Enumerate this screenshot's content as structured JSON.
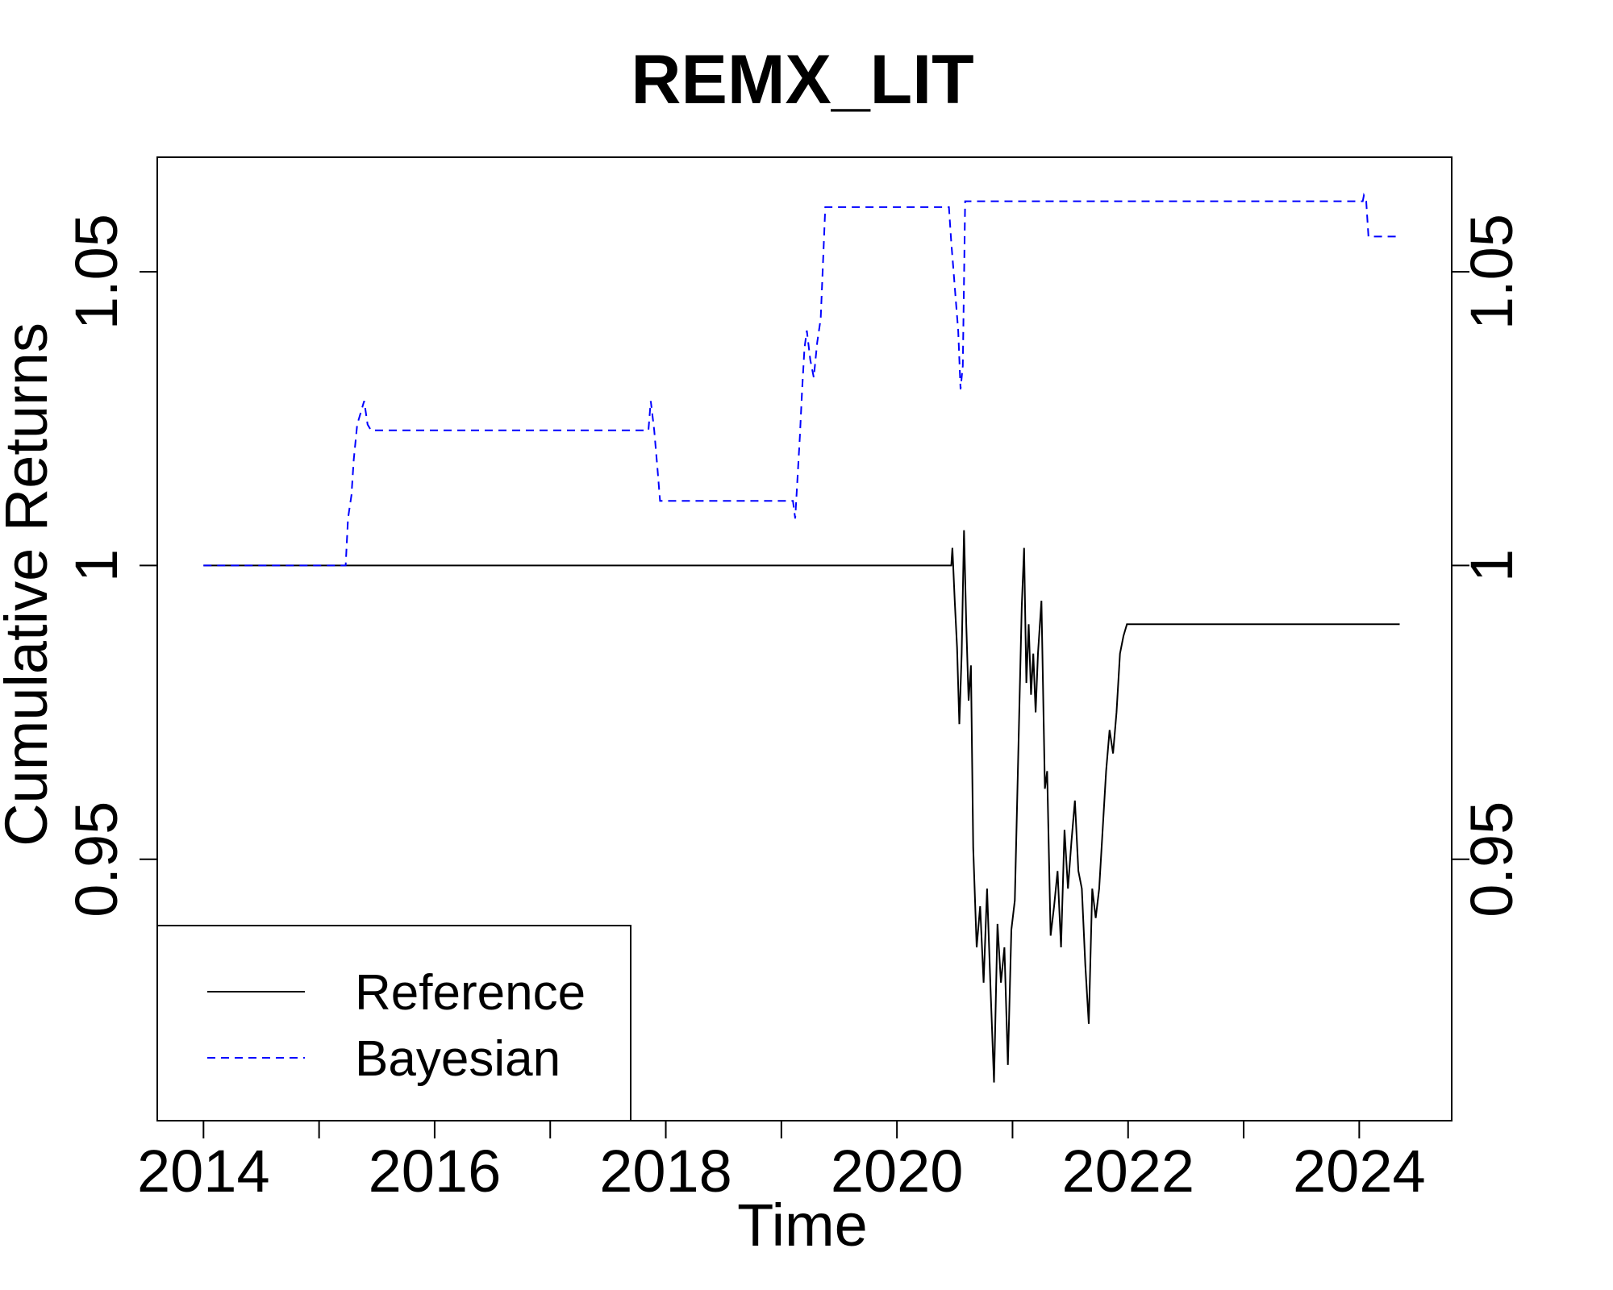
{
  "chart_data": {
    "type": "line",
    "title": "REMX_LIT",
    "xlabel": "Time",
    "ylabel": "Cumulative Returns",
    "xlim": [
      2013.6,
      2024.8
    ],
    "ylim": [
      0.9055,
      1.0695
    ],
    "x_ticks": [
      2014,
      2016,
      2018,
      2020,
      2022,
      2024
    ],
    "x_tick_labels": [
      "2014",
      "2016",
      "2018",
      "2020",
      "2022",
      "2024"
    ],
    "x_minor_ticks": [
      2015,
      2017,
      2019,
      2021,
      2023
    ],
    "y_ticks": [
      0.95,
      1.0,
      1.05
    ],
    "y_tick_labels": [
      "0.95",
      "1",
      "1.05"
    ],
    "grid": false,
    "legend_position": "bottom-left",
    "series": [
      {
        "name": "Reference",
        "color": "#000000",
        "line_style": "solid",
        "x": [
          2014.0,
          2020.47,
          2020.48,
          2020.5,
          2020.52,
          2020.54,
          2020.56,
          2020.58,
          2020.6,
          2020.62,
          2020.64,
          2020.66,
          2020.69,
          2020.72,
          2020.75,
          2020.78,
          2020.81,
          2020.84,
          2020.87,
          2020.9,
          2020.93,
          2020.96,
          2020.99,
          2021.02,
          2021.05,
          2021.08,
          2021.1,
          2021.12,
          2021.14,
          2021.16,
          2021.18,
          2021.2,
          2021.22,
          2021.25,
          2021.28,
          2021.3,
          2021.33,
          2021.36,
          2021.39,
          2021.42,
          2021.45,
          2021.48,
          2021.51,
          2021.54,
          2021.57,
          2021.6,
          2021.63,
          2021.66,
          2021.69,
          2021.72,
          2021.75,
          2021.78,
          2021.81,
          2021.84,
          2021.87,
          2021.9,
          2021.93,
          2021.96,
          2021.99,
          2022.02,
          2022.05,
          2022.08,
          2022.11,
          2022.14,
          2022.17,
          2024.35
        ],
        "y": [
          1.0,
          1.0,
          1.003,
          0.994,
          0.986,
          0.973,
          0.985,
          1.006,
          0.99,
          0.977,
          0.983,
          0.952,
          0.935,
          0.942,
          0.929,
          0.945,
          0.928,
          0.912,
          0.939,
          0.929,
          0.935,
          0.915,
          0.938,
          0.943,
          0.968,
          0.993,
          1.003,
          0.98,
          0.99,
          0.978,
          0.985,
          0.975,
          0.985,
          0.994,
          0.962,
          0.965,
          0.937,
          0.942,
          0.948,
          0.935,
          0.955,
          0.945,
          0.953,
          0.96,
          0.948,
          0.945,
          0.932,
          0.922,
          0.945,
          0.94,
          0.945,
          0.955,
          0.965,
          0.972,
          0.968,
          0.975,
          0.985,
          0.988,
          0.99,
          0.99,
          0.99,
          0.99,
          0.99,
          0.99,
          0.99,
          0.99
        ]
      },
      {
        "name": "Bayesian",
        "color": "#0000ff",
        "line_style": "dashed",
        "x": [
          2014.0,
          2015.23,
          2015.25,
          2015.28,
          2015.3,
          2015.33,
          2015.36,
          2015.39,
          2015.42,
          2015.45,
          2017.85,
          2017.87,
          2017.9,
          2017.93,
          2017.95,
          2019.1,
          2019.12,
          2019.14,
          2019.16,
          2019.18,
          2019.2,
          2019.22,
          2019.25,
          2019.28,
          2019.31,
          2019.34,
          2019.38,
          2019.44,
          2020.45,
          2020.47,
          2020.49,
          2020.51,
          2020.53,
          2020.55,
          2020.57,
          2020.59,
          2020.62,
          2020.65,
          2024.03,
          2024.04,
          2024.06,
          2024.08,
          2024.35
        ],
        "y": [
          1.0,
          1.0,
          1.008,
          1.012,
          1.018,
          1.024,
          1.026,
          1.028,
          1.024,
          1.023,
          1.023,
          1.028,
          1.023,
          1.016,
          1.011,
          1.011,
          1.008,
          1.015,
          1.022,
          1.03,
          1.037,
          1.04,
          1.035,
          1.032,
          1.038,
          1.042,
          1.061,
          1.061,
          1.061,
          1.055,
          1.05,
          1.045,
          1.04,
          1.03,
          1.034,
          1.062,
          1.062,
          1.062,
          1.062,
          1.063,
          1.062,
          1.056,
          1.056
        ]
      }
    ]
  }
}
